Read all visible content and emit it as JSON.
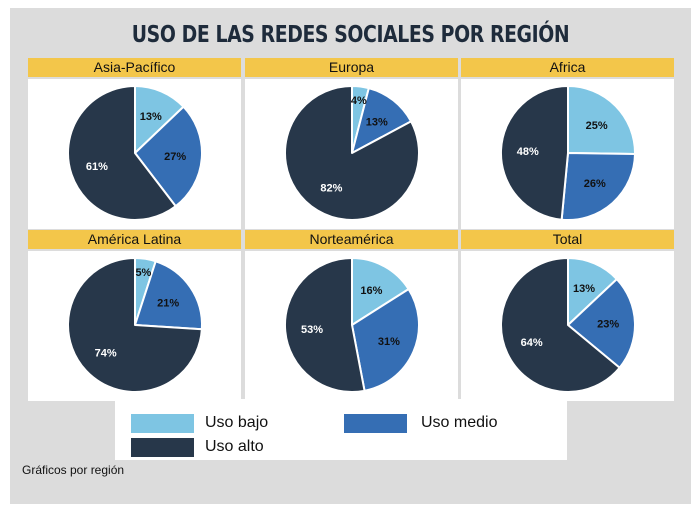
{
  "title": "USO DE LAS REDES SOCIALES POR REGIÓN",
  "footnote": "Gráficos por región",
  "colors": {
    "bajo": "#7ec5e3",
    "medio": "#356eb4",
    "alto": "#27374a",
    "header": "#f3c64a"
  },
  "legend": [
    {
      "key": "bajo",
      "label": "Uso bajo"
    },
    {
      "key": "medio",
      "label": "Uso medio"
    },
    {
      "key": "alto",
      "label": "Uso alto"
    }
  ],
  "chart_data": [
    {
      "type": "pie",
      "title": "Asia-Pacífico",
      "categories": [
        "Uso bajo",
        "Uso medio",
        "Uso alto"
      ],
      "values": [
        13,
        27,
        61
      ],
      "labels": [
        "13%",
        "27%",
        "61%"
      ]
    },
    {
      "type": "pie",
      "title": "Europa",
      "categories": [
        "Uso bajo",
        "Uso medio",
        "Uso alto"
      ],
      "values": [
        4,
        13,
        82
      ],
      "labels": [
        "4%",
        "13%",
        "82%"
      ]
    },
    {
      "type": "pie",
      "title": "Africa",
      "categories": [
        "Uso bajo",
        "Uso medio",
        "Uso alto"
      ],
      "values": [
        25,
        26,
        48
      ],
      "labels": [
        "25%",
        "26%",
        "48%"
      ]
    },
    {
      "type": "pie",
      "title": "América Latina",
      "categories": [
        "Uso bajo",
        "Uso medio",
        "Uso alto"
      ],
      "values": [
        5,
        21,
        74
      ],
      "labels": [
        "5%",
        "21%",
        "74%"
      ]
    },
    {
      "type": "pie",
      "title": "Norteamérica",
      "categories": [
        "Uso bajo",
        "Uso medio",
        "Uso alto"
      ],
      "values": [
        16,
        31,
        53
      ],
      "labels": [
        "16%",
        "31%",
        "53%"
      ]
    },
    {
      "type": "pie",
      "title": "Total",
      "categories": [
        "Uso bajo",
        "Uso medio",
        "Uso alto"
      ],
      "values": [
        13,
        23,
        64
      ],
      "labels": [
        "13%",
        "23%",
        "64%"
      ]
    }
  ]
}
